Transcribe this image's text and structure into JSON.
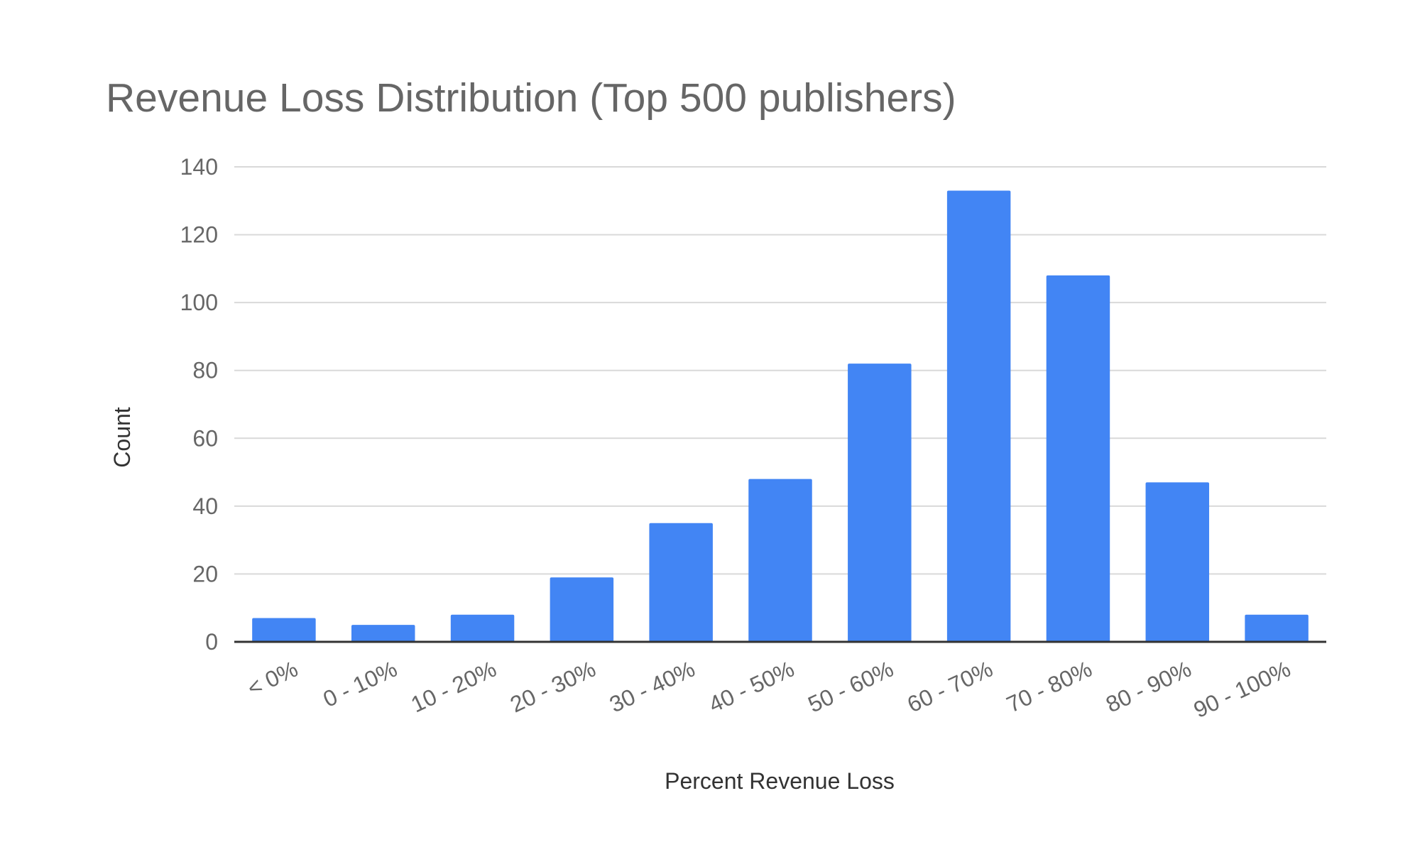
{
  "chart_data": {
    "type": "bar",
    "title": "Revenue Loss Distribution (Top 500 publishers)",
    "xlabel": "Percent Revenue Loss",
    "ylabel": "Count",
    "categories": [
      "< 0%",
      "0 - 10%",
      "10 - 20%",
      "20 - 30%",
      "30 - 40%",
      "40 - 50%",
      "50 - 60%",
      "60 - 70%",
      "70 - 80%",
      "80 - 90%",
      "90 - 100%"
    ],
    "values": [
      7,
      5,
      8,
      19,
      35,
      48,
      82,
      133,
      108,
      47,
      8
    ],
    "ylim": [
      0,
      140
    ],
    "yticks": [
      0,
      20,
      40,
      60,
      80,
      100,
      120,
      140
    ],
    "grid": true,
    "legend": "none",
    "colors": {
      "bar": "#4285f4",
      "grid": "#d9d9d9",
      "text": "#666666",
      "axis": "#333333"
    }
  }
}
